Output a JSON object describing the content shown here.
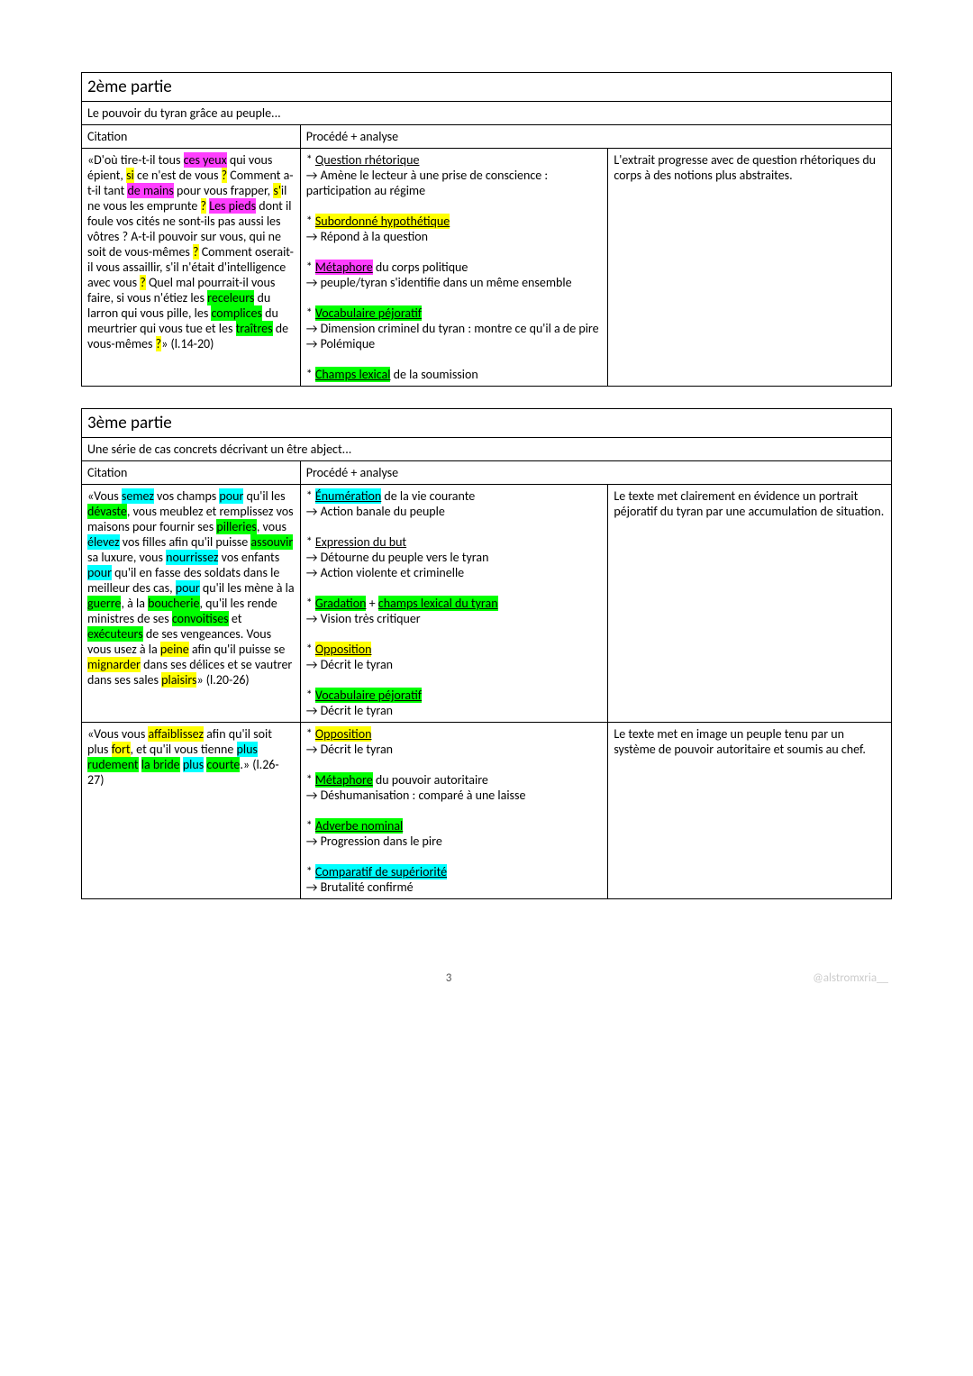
{
  "part2": {
    "title": "2ème partie",
    "subtitle": "Le pouvoir du tyran grâce au peuple...",
    "headers": {
      "citation": "Citation",
      "procedure": "Procédé + analyse"
    },
    "row1": {
      "citation": {
        "pre": "«D'où tire-t-il tous ",
        "hl_pink1": "ces yeux",
        "t1": " qui vous épient, ",
        "hl_yellow1": "si",
        "t2": " ce n'est de vous ",
        "hl_yellow2": "?",
        "t3": " Comment a-t-il tant ",
        "hl_pink2": "de mains",
        "t4": " pour vous frapper, ",
        "hl_yellow3": "s'",
        "t5": "il ne vous les emprunte ",
        "hl_yellow4": "?",
        "t6": " ",
        "hl_pink3": "Les pieds",
        "t7": " dont il foule vos cités ne sont-ils pas aussi les vôtres ? A-t-il pouvoir sur vous, qui ne soit de vous-mêmes ",
        "hl_yellow5": "?",
        "t8": " Comment oserait-il vous assaillir, s'il n'était d'intelligence avec vous ",
        "hl_yellow6": "?",
        "t9": " Quel mal pourrait-il vous faire, si vous n'étiez les ",
        "hl_green1": "receleurs",
        "t10": " du larron qui vous pille, les ",
        "hl_green2": "complices",
        "t11": " du meurtrier qui vous tue et les ",
        "hl_green3": "traîtres",
        "t12": " de vous-mêmes ",
        "hl_yellow7": "?",
        "t13": "» (l.14-20)"
      },
      "procedure": {
        "p1_lead": "* ",
        "p1": "Question rhétorique",
        "p1a": "Amène le lecteur à une prise de conscience : participation au régime",
        "p2_lead": "* ",
        "p2": "Subordonné hypothétique",
        "p2a": "Répond à la question",
        "p3_lead": "* ",
        "p3_hl": "Métaphore",
        "p3_rest": " du corps politique",
        "p3a": "peuple/tyran s'identifie dans un même ensemble",
        "p4_lead": "* ",
        "p4": "Vocabulaire péjoratif",
        "p4a": "Dimension criminel du tyran : montre ce qu'il a de pire",
        "p4b": "Polémique",
        "p5_lead": "* ",
        "p5_hl": "Champs lexical",
        "p5_rest": " de la soumission"
      },
      "analysis": "L'extrait progresse avec de question rhétoriques du corps à des notions plus abstraites."
    }
  },
  "part3": {
    "title": "3ème partie",
    "subtitle": "Une série de cas concrets décrivant un être abject...",
    "headers": {
      "citation": "Citation",
      "procedure": "Procédé + analyse"
    },
    "row1": {
      "citation": {
        "pre": "«Vous ",
        "hl1": "semez",
        "t1": " vos champs ",
        "hl2": "pour",
        "t2": " qu'il les ",
        "hl3": "dévaste",
        "t3": ", vous meublez et remplissez vos maisons pour fournir ses ",
        "hl4": "pilleries",
        "t4": ", vous ",
        "hl5": "élevez",
        "t5": " vos filles afin qu'il puisse ",
        "hl6": "assouvir",
        "t6": " sa luxure, vous ",
        "hl7": "nourrissez",
        "t7": " vos enfants ",
        "hl8": "pour",
        "t8": " qu'il en fasse des soldats dans le meilleur des cas, ",
        "hl9": "pour",
        "t9": " qu'il les mène à la ",
        "hl10": "guerre",
        "t10": ", à la ",
        "hl11": "boucherie",
        "t11": ", qu'il les rende ministres de ses ",
        "hl12": "convoitises",
        "t12": " et ",
        "hl13": "exécuteurs",
        "t13": " de ses vengeances. Vous vous usez à la ",
        "hl14": "peine",
        "t14": " afin qu'il puisse se ",
        "hl15": "mignarder",
        "t15": " dans ses délices et se vautrer dans ses sales ",
        "hl16": "plaisirs",
        "t16": "» (l.20-26)"
      },
      "procedure": {
        "p1_lead": "* ",
        "p1": "Énumération",
        "p1_rest": " de la vie courante",
        "p1a": "Action banale du peuple",
        "p2_lead": "* ",
        "p2": "Expression du but",
        "p2a": "Détourne du peuple vers le tyran",
        "p2b": "Action violente et criminelle",
        "p3_lead": "* ",
        "p3a_hl": "Gradation",
        "p3_plus": " + ",
        "p3b_hl": "champs lexical du tyran",
        "p3c": "Vision très critiquer",
        "p4_lead": "* ",
        "p4": "Opposition",
        "p4a": "Décrit le tyran",
        "p5_lead": "* ",
        "p5": "Vocabulaire péjoratif",
        "p5a": "Décrit le tyran"
      },
      "analysis": "Le texte met clairement en évidence un portrait péjoratif du tyran par une accumulation de situation."
    },
    "row2": {
      "citation": {
        "pre": "«Vous vous ",
        "hl1": "affaiblissez",
        "t1": " afin qu'il soit plus ",
        "hl2": "fort",
        "t2": ", et qu'il vous tienne ",
        "hl3": "plus",
        "t3": " ",
        "hl4": "rudement",
        "t4": " ",
        "hl5": "la bride",
        "t5": " ",
        "hl6": "plus",
        "t6": " ",
        "hl7": "courte",
        "t7": ".» (l.26-27)"
      },
      "procedure": {
        "p1_lead": "* ",
        "p1": "Opposition",
        "p1a": "Décrit le tyran",
        "p2_lead": "* ",
        "p2_hl": "Métaphore",
        "p2_rest": " du pouvoir autoritaire",
        "p2a": "Déshumanisation : comparé à une laisse",
        "p3_lead": "* ",
        "p3": "Adverbe nominal",
        "p3a": "Progression dans le pire",
        "p4_lead": "* ",
        "p4": "Comparatif de supériorité",
        "p4a": "Brutalité confirmé"
      },
      "analysis": "Le texte met en image un peuple tenu par un système de pouvoir autoritaire et soumis au chef."
    }
  },
  "footer": {
    "page": "3",
    "tag": "@alstromxria__"
  },
  "colors": {
    "pink": "#ff3eff",
    "yellow": "#ffff00",
    "green": "#00ff00",
    "cyan": "#00ffff",
    "border": "#000000",
    "footer_gray": "#cccccc"
  }
}
